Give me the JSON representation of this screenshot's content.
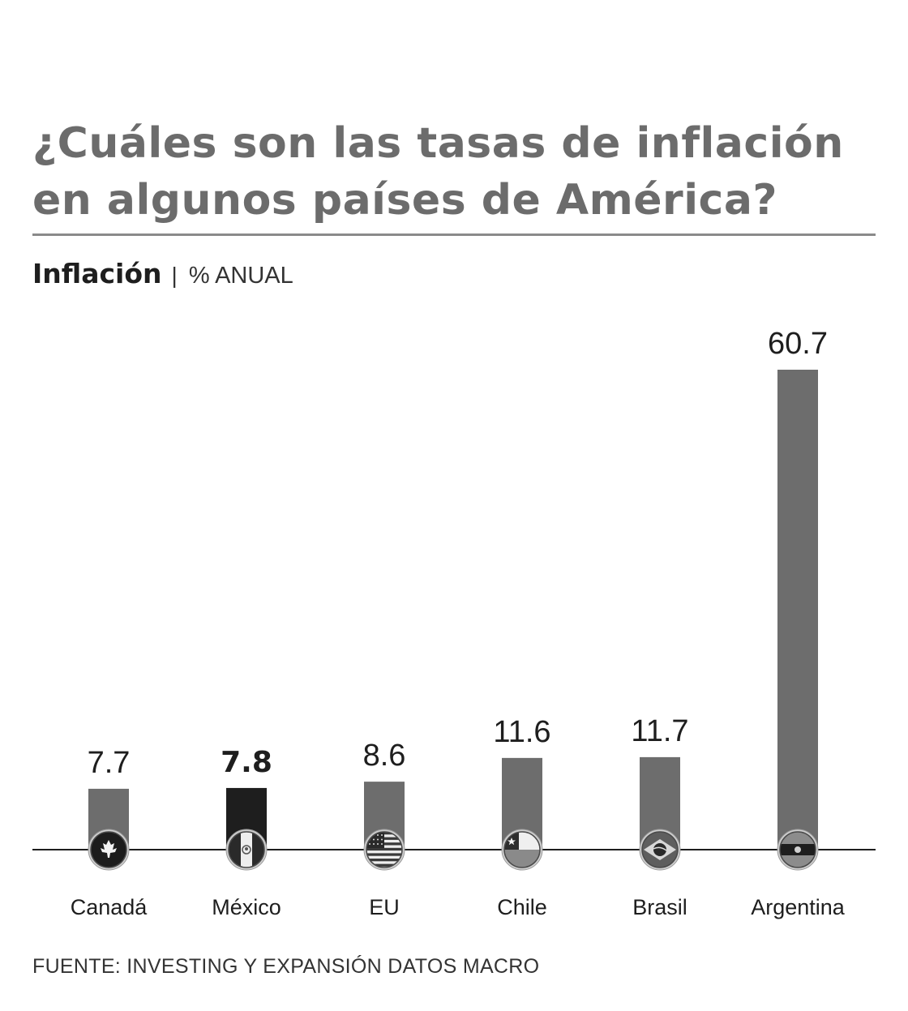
{
  "title": {
    "line1": "¿Cuáles son las tasas de inflación",
    "line2": "en algunos países de América?"
  },
  "subtitle": {
    "label": "Inflación",
    "separator": "|",
    "unit": "% ANUAL"
  },
  "source": "FUENTE: INVESTING Y EXPANSIÓN DATOS MACRO",
  "colors": {
    "bar": "#6d6d6d",
    "highlight_bar": "#1e1e1e",
    "title": "#6c6c6c",
    "axis": "#1e1e1e"
  },
  "chart_data": {
    "type": "bar",
    "title": "¿Cuáles son las tasas de inflación en algunos países de América?",
    "ylabel": "Inflación % ANUAL",
    "xlabel": "",
    "ylim": [
      0,
      60.7
    ],
    "grid": false,
    "categories": [
      "Canadá",
      "México",
      "EU",
      "Chile",
      "Brasil",
      "Argentina"
    ],
    "values": [
      7.7,
      7.8,
      8.6,
      11.6,
      11.7,
      60.7
    ],
    "value_labels": [
      "7.7",
      "7.8",
      "8.6",
      "11.6",
      "11.7",
      "60.7"
    ],
    "highlight": "México",
    "flag_icons": [
      "canada-flag-icon",
      "mexico-flag-icon",
      "usa-flag-icon",
      "chile-flag-icon",
      "brazil-flag-icon",
      "argentina-flag-icon"
    ]
  }
}
